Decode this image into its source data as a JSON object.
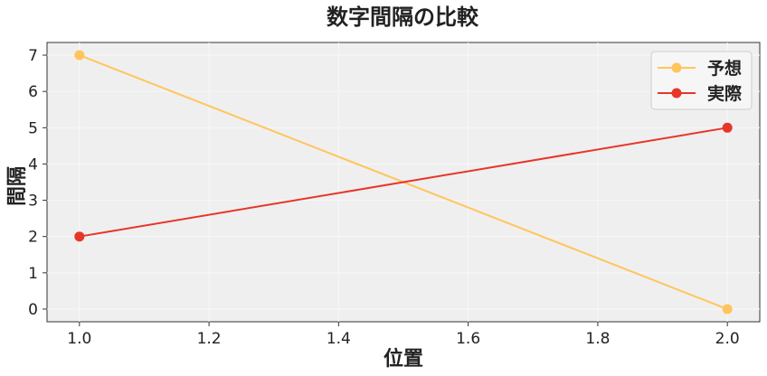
{
  "chart_data": {
    "type": "line",
    "title": "数字間隔の比較",
    "xlabel": "位置",
    "ylabel": "間隔",
    "xlim": [
      0.95,
      2.05
    ],
    "ylim": [
      -0.35,
      7.35
    ],
    "xticks": [
      1.0,
      1.2,
      1.4,
      1.6,
      1.8,
      2.0
    ],
    "yticks": [
      0,
      1,
      2,
      3,
      4,
      5,
      6,
      7
    ],
    "grid": true,
    "legend_position": "top-right",
    "series": [
      {
        "name": "予想",
        "color": "#FFC55C",
        "x": [
          1.0,
          2.0
        ],
        "y": [
          7,
          0
        ]
      },
      {
        "name": "実際",
        "color": "#E8352A",
        "x": [
          1.0,
          2.0
        ],
        "y": [
          2,
          5
        ]
      }
    ]
  }
}
